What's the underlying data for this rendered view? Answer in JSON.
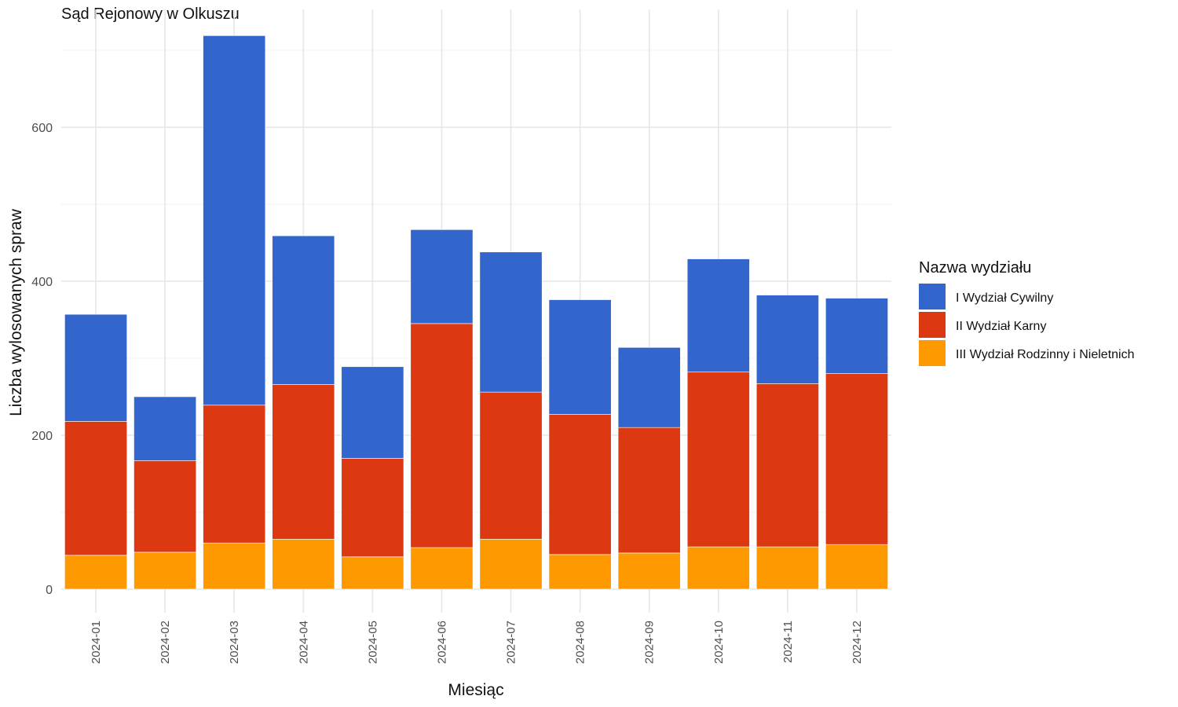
{
  "chart_data": {
    "type": "bar",
    "stacked": true,
    "title": "Sąd Rejonowy w Olkuszu",
    "xlabel": "Miesiąc",
    "ylabel": "Liczba wylosowanych spraw",
    "ylim": [
      0,
      720
    ],
    "yticks": [
      0,
      200,
      400,
      600
    ],
    "grid": true,
    "legend": {
      "title": "Nazwa wydziału",
      "position": "right"
    },
    "categories": [
      "2024-01",
      "2024-02",
      "2024-03",
      "2024-04",
      "2024-05",
      "2024-06",
      "2024-07",
      "2024-08",
      "2024-09",
      "2024-10",
      "2024-11",
      "2024-12"
    ],
    "series": [
      {
        "name": "III Wydział Rodzinny i Nieletnich",
        "color": "#FF9900",
        "values": [
          44,
          48,
          60,
          65,
          42,
          54,
          65,
          45,
          47,
          55,
          55,
          58
        ]
      },
      {
        "name": "II Wydział Karny",
        "color": "#DC3912",
        "values": [
          174,
          119,
          179,
          201,
          128,
          291,
          191,
          182,
          163,
          227,
          212,
          222
        ]
      },
      {
        "name": "I Wydział Cywilny",
        "color": "#3366CC",
        "values": [
          139,
          83,
          480,
          193,
          119,
          122,
          182,
          149,
          104,
          147,
          115,
          98
        ]
      }
    ],
    "legend_order": [
      "I Wydział Cywilny",
      "II Wydział Karny",
      "III Wydział Rodzinny i Nieletnich"
    ]
  }
}
